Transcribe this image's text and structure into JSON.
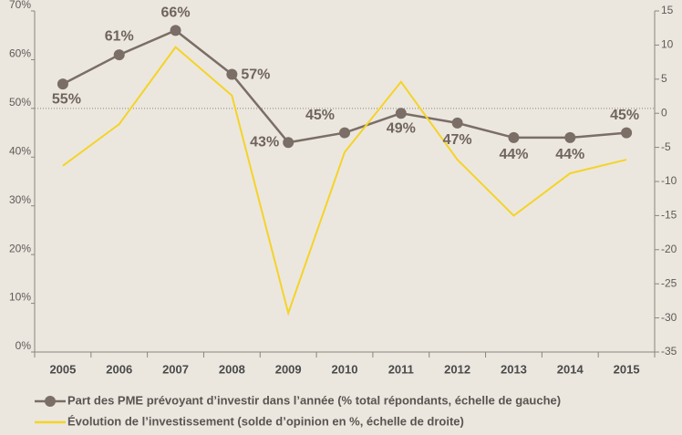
{
  "chart_data": {
    "type": "line",
    "categories": [
      "2005",
      "2006",
      "2007",
      "2008",
      "2009",
      "2010",
      "2011",
      "2012",
      "2013",
      "2014",
      "2015"
    ],
    "series": [
      {
        "name": "Part des PME prévoyant d’investir dans l’année (% total répondants, échelle de gauche)",
        "color": "#7a6e66",
        "values": [
          55,
          61,
          66,
          57,
          43,
          45,
          49,
          47,
          44,
          44,
          45
        ],
        "value_labels": [
          "55%",
          "61%",
          "66%",
          "57%",
          "43%",
          "45%",
          "49%",
          "47%",
          "44%",
          "44%",
          "45%"
        ]
      },
      {
        "name": "Évolution de l’investissement (solde d’opinion en %, échelle de droite)",
        "color": "#f5d327",
        "axis": "y2",
        "values": [
          -7.7,
          -1.6,
          9.7,
          2.6,
          -29.3,
          -5.7,
          4.6,
          -6.8,
          -15,
          -8.8,
          -6.8
        ]
      }
    ],
    "ylim": [
      0,
      70
    ],
    "yticks": [
      {
        "value": 0,
        "label": "0%"
      },
      {
        "value": 10,
        "label": "10%"
      },
      {
        "value": 20,
        "label": "20%"
      },
      {
        "value": 30,
        "label": "30%"
      },
      {
        "value": 40,
        "label": "40%"
      },
      {
        "value": 50,
        "label": "50%"
      },
      {
        "value": 60,
        "label": "60%"
      },
      {
        "value": 70,
        "label": "70%"
      }
    ],
    "y2lim": [
      -35,
      15
    ],
    "y2ticks": [
      15,
      10,
      5,
      0,
      -5,
      -10,
      -15,
      -20,
      -25,
      -30,
      -35
    ],
    "reference_y": 50
  }
}
